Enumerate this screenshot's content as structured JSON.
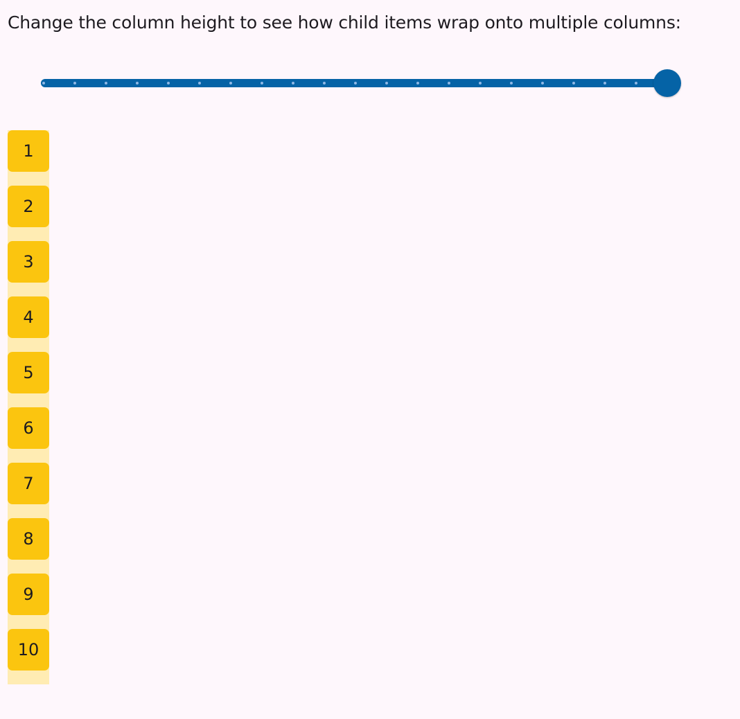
{
  "instruction": "Change the column height to see how child items wrap onto multiple columns:",
  "slider": {
    "value_fraction": 1.0,
    "divisions": 20,
    "active_color": "#0563a6",
    "tick_color": "#8fb8e6"
  },
  "column": {
    "background_color": "#ffecb3",
    "item_color": "#fbc50f",
    "items": [
      "1",
      "2",
      "3",
      "4",
      "5",
      "6",
      "7",
      "8",
      "9",
      "10"
    ]
  }
}
